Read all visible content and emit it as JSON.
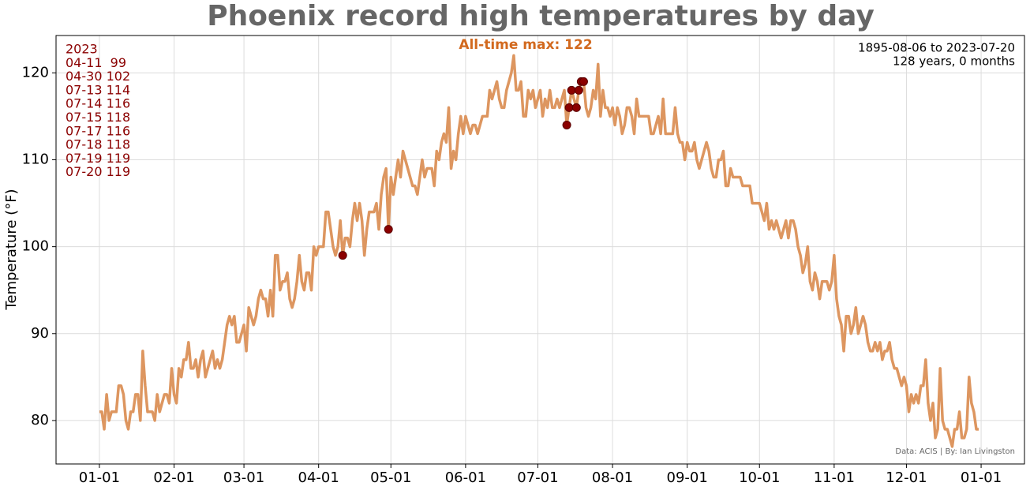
{
  "chart_data": {
    "type": "line",
    "title": "Phoenix record high temperatures by day",
    "ylabel": "Temperature (°F)",
    "max_annotation": "All-time max: 122",
    "period": [
      "1895-08-06 to 2023-07-20",
      "128 years, 0 months"
    ],
    "credit": "Data: ACIS | By: Ian Livingston",
    "annotations": [
      "2023",
      "04-11  99",
      "04-30 102",
      "07-13 114",
      "07-14 116",
      "07-15 118",
      "07-17 116",
      "07-18 118",
      "07-19 119",
      "07-20 119"
    ],
    "grid": true,
    "xlim": [
      -18,
      384
    ],
    "ylim": [
      75,
      124.3
    ],
    "yticks": [
      80,
      90,
      100,
      110,
      120
    ],
    "xticks": [
      {
        "value": 0,
        "label": "01-01"
      },
      {
        "value": 31,
        "label": "02-01"
      },
      {
        "value": 60,
        "label": "03-01"
      },
      {
        "value": 91,
        "label": "04-01"
      },
      {
        "value": 121,
        "label": "05-01"
      },
      {
        "value": 152,
        "label": "06-01"
      },
      {
        "value": 182,
        "label": "07-01"
      },
      {
        "value": 213,
        "label": "08-01"
      },
      {
        "value": 244,
        "label": "09-01"
      },
      {
        "value": 274,
        "label": "10-01"
      },
      {
        "value": 305,
        "label": "11-01"
      },
      {
        "value": 335,
        "label": "12-01"
      },
      {
        "value": 366,
        "label": "01-01"
      }
    ],
    "x": [
      0,
      1,
      2,
      3,
      4,
      5,
      6,
      7,
      8,
      9,
      10,
      11,
      12,
      13,
      14,
      15,
      16,
      17,
      18,
      19,
      20,
      21,
      22,
      23,
      24,
      25,
      26,
      27,
      28,
      29,
      30,
      31,
      32,
      33,
      34,
      35,
      36,
      37,
      38,
      39,
      40,
      41,
      42,
      43,
      44,
      45,
      46,
      47,
      48,
      49,
      50,
      51,
      52,
      53,
      54,
      55,
      56,
      57,
      58,
      59,
      60,
      61,
      62,
      63,
      64,
      65,
      66,
      67,
      68,
      69,
      70,
      71,
      72,
      73,
      74,
      75,
      76,
      77,
      78,
      79,
      80,
      81,
      82,
      83,
      84,
      85,
      86,
      87,
      88,
      89,
      90,
      91,
      92,
      93,
      94,
      95,
      96,
      97,
      98,
      99,
      100,
      101,
      102,
      103,
      104,
      105,
      106,
      107,
      108,
      109,
      110,
      111,
      112,
      113,
      114,
      115,
      116,
      117,
      118,
      119,
      120,
      121,
      122,
      123,
      124,
      125,
      126,
      127,
      128,
      129,
      130,
      131,
      132,
      133,
      134,
      135,
      136,
      137,
      138,
      139,
      140,
      141,
      142,
      143,
      144,
      145,
      146,
      147,
      148,
      149,
      150,
      151,
      152,
      153,
      154,
      155,
      156,
      157,
      158,
      159,
      160,
      161,
      162,
      163,
      164,
      165,
      166,
      167,
      168,
      169,
      170,
      171,
      172,
      173,
      174,
      175,
      176,
      177,
      178,
      179,
      180,
      181,
      182,
      183,
      184,
      185,
      186,
      187,
      188,
      189,
      190,
      191,
      192,
      193,
      194,
      195,
      196,
      197,
      198,
      199,
      200,
      201,
      202,
      203,
      204,
      205,
      206,
      207,
      208,
      209,
      210,
      211,
      212,
      213,
      214,
      215,
      216,
      217,
      218,
      219,
      220,
      221,
      222,
      223,
      224,
      225,
      226,
      227,
      228,
      229,
      230,
      231,
      232,
      233,
      234,
      235,
      236,
      237,
      238,
      239,
      240,
      241,
      242,
      243,
      244,
      245,
      246,
      247,
      248,
      249,
      250,
      251,
      252,
      253,
      254,
      255,
      256,
      257,
      258,
      259,
      260,
      261,
      262,
      263,
      264,
      265,
      266,
      267,
      268,
      269,
      270,
      271,
      272,
      273,
      274,
      275,
      276,
      277,
      278,
      279,
      280,
      281,
      282,
      283,
      284,
      285,
      286,
      287,
      288,
      289,
      290,
      291,
      292,
      293,
      294,
      295,
      296,
      297,
      298,
      299,
      300,
      301,
      302,
      303,
      304,
      305,
      306,
      307,
      308,
      309,
      310,
      311,
      312,
      313,
      314,
      315,
      316,
      317,
      318,
      319,
      320,
      321,
      322,
      323,
      324,
      325,
      326,
      327,
      328,
      329,
      330,
      331,
      332,
      333,
      334,
      335,
      336,
      337,
      338,
      339,
      340,
      341,
      342,
      343,
      344,
      345,
      346,
      347,
      348,
      349,
      350,
      351,
      352,
      353,
      354,
      355,
      356,
      357,
      358,
      359,
      360,
      361,
      362,
      363,
      364,
      365
    ],
    "series": [
      {
        "color": "#dd9660",
        "values": [
          81,
          81,
          79,
          83,
          80,
          81,
          81,
          81,
          84,
          84,
          83,
          80,
          79,
          81,
          81,
          83,
          83,
          80,
          88,
          84,
          81,
          81,
          81,
          80,
          83,
          81,
          82,
          83,
          83,
          82,
          86,
          83,
          82,
          86,
          85,
          87,
          87,
          89,
          86,
          86,
          87,
          85,
          87,
          88,
          85,
          86,
          87,
          88,
          86,
          87,
          86,
          87,
          89,
          91,
          92,
          91,
          92,
          89,
          89,
          90,
          91,
          88,
          93,
          92,
          91,
          92,
          94,
          95,
          94,
          94,
          92,
          95,
          92,
          99,
          99,
          95,
          96,
          96,
          97,
          94,
          93,
          94,
          96,
          99,
          96,
          95,
          97,
          97,
          95,
          100,
          99,
          100,
          100,
          100,
          104,
          104,
          102,
          100,
          99,
          100,
          103,
          99,
          101,
          101,
          100,
          103,
          105,
          103,
          105,
          103,
          99,
          102,
          104,
          104,
          104,
          105,
          102,
          106,
          108,
          109,
          102,
          108,
          106,
          108,
          110,
          108,
          111,
          110,
          109,
          108,
          107,
          107,
          106,
          108,
          110,
          108,
          109,
          109,
          109,
          107,
          111,
          110,
          112,
          113,
          112,
          116,
          109,
          111,
          110,
          113,
          115,
          113,
          115,
          114,
          113,
          114,
          114,
          113,
          114,
          115,
          115,
          115,
          118,
          117,
          118,
          119,
          117,
          116,
          116,
          118,
          119,
          120,
          122,
          118,
          118,
          119,
          115,
          115,
          118,
          117,
          118,
          116,
          117,
          118,
          115,
          117,
          116,
          118,
          116,
          116,
          117,
          116,
          117,
          118,
          114,
          116,
          118,
          117,
          116,
          118,
          119,
          119,
          116,
          115,
          116,
          118,
          117,
          121,
          115,
          118,
          116,
          116,
          115,
          116,
          114,
          116,
          115,
          113,
          114,
          116,
          116,
          115,
          113,
          117,
          115,
          115,
          115,
          115,
          115,
          113,
          113,
          114,
          115,
          113,
          117,
          113,
          113,
          113,
          113,
          116,
          113,
          112,
          112,
          110,
          112,
          111,
          111,
          112,
          110,
          109,
          110,
          111,
          112,
          111,
          109,
          108,
          108,
          110,
          110,
          111,
          107,
          107,
          109,
          108,
          108,
          108,
          108,
          107,
          107,
          107,
          107,
          105,
          105,
          105,
          105,
          104,
          103,
          105,
          102,
          103,
          102,
          103,
          102,
          101,
          102,
          103,
          101,
          103,
          103,
          102,
          100,
          99,
          97,
          98,
          100,
          96,
          95,
          97,
          96,
          94,
          96,
          96,
          96,
          95,
          96,
          99,
          94,
          92,
          91,
          88,
          92,
          92,
          90,
          91,
          93,
          90,
          91,
          92,
          91,
          89,
          88,
          88,
          89,
          88,
          89,
          87,
          88,
          88,
          89,
          87,
          86,
          86,
          85,
          84,
          85,
          84,
          81,
          83,
          82,
          83,
          82,
          84,
          84,
          87,
          82,
          80,
          82,
          78,
          79,
          86,
          80,
          79,
          79,
          78,
          77,
          79,
          79,
          81,
          78,
          78,
          79,
          85,
          82,
          81,
          79,
          79
        ]
      },
      {
        "color": "#8b0000",
        "x": [
          101,
          120,
          194,
          195,
          196,
          198,
          199,
          200,
          201
        ],
        "values": [
          99,
          102,
          114,
          116,
          118,
          116,
          118,
          119,
          119
        ]
      }
    ]
  }
}
